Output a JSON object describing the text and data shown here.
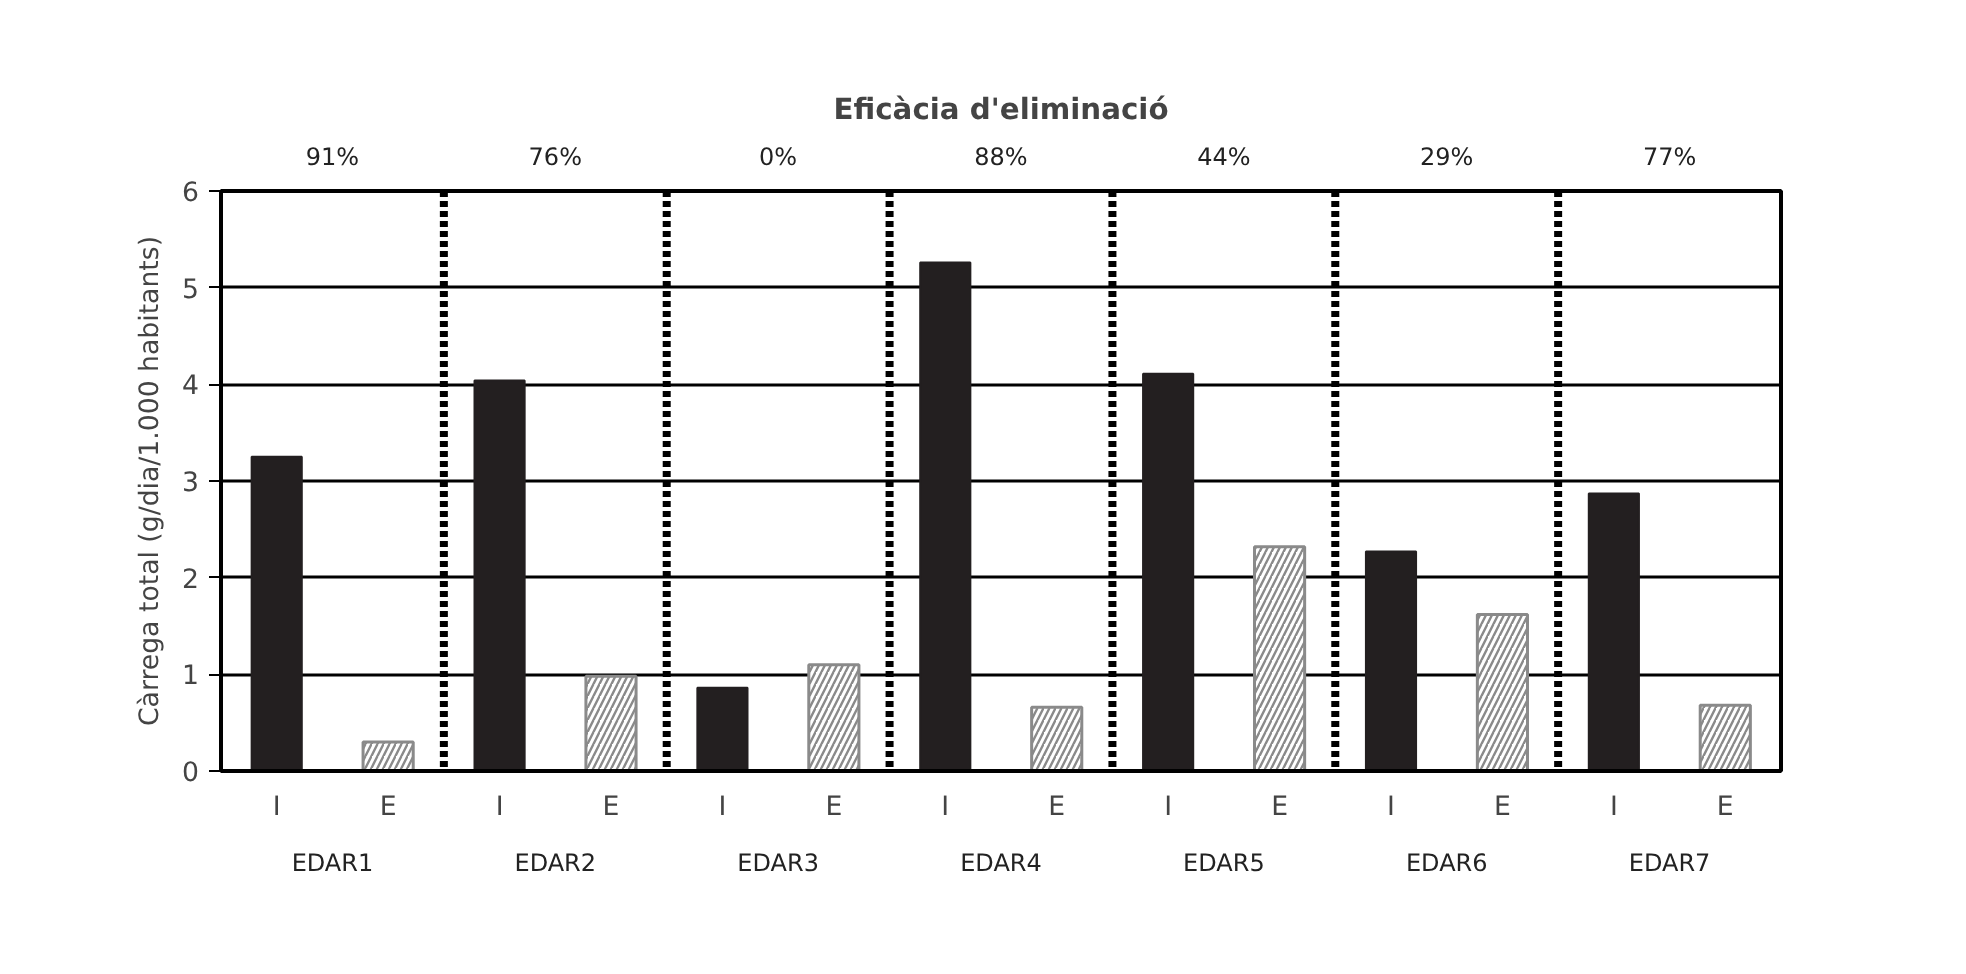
{
  "chart_data": {
    "type": "bar",
    "title": "Eficàcia d'eliminació",
    "ylabel": "Càrrega total (g/dia/1.000 habitants)",
    "categories": [
      "I",
      "E",
      "I",
      "E",
      "I",
      "E",
      "I",
      "E",
      "I",
      "E",
      "I",
      "E",
      "I",
      "E"
    ],
    "series": [
      {
        "color": "#231f20",
        "values": [
          3.25,
          null,
          4.04,
          null,
          0.86,
          null,
          5.26,
          null,
          4.11,
          null,
          2.27,
          null,
          2.87,
          null
        ]
      },
      {
        "color": "#8a8a8a",
        "values": [
          null,
          0.3,
          null,
          0.98,
          null,
          1.1,
          null,
          0.66,
          null,
          2.32,
          null,
          1.62,
          null,
          0.68
        ]
      }
    ],
    "ylim": [
      0,
      6
    ],
    "yticks": [
      0,
      1,
      2,
      3,
      4,
      5,
      6
    ],
    "grid": "y",
    "annotations": [
      "91%",
      "76%",
      "0%",
      "88%",
      "44%",
      "29%",
      "77%",
      "EDAR1",
      "EDAR2",
      "EDAR3",
      "EDAR4",
      "EDAR5",
      "EDAR6",
      "EDAR7"
    ]
  }
}
